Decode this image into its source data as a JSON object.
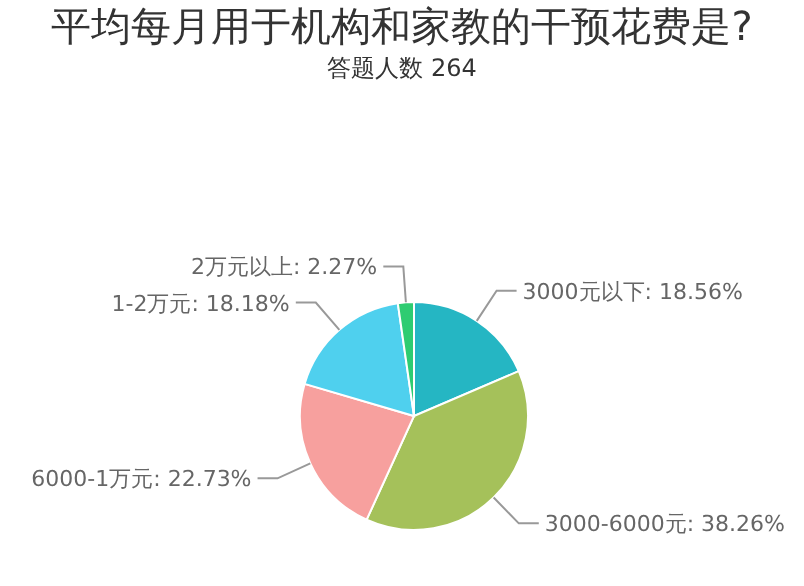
{
  "chart_data": {
    "type": "pie",
    "title": "平均每月用于机构和家教的干预花费是?",
    "subtitle": "答题人数 264",
    "categories": [
      "3000元以下",
      "3000-6000元",
      "6000-1万元",
      "1-2万元",
      "2万元以上"
    ],
    "values": [
      18.56,
      38.26,
      22.73,
      18.18,
      2.27
    ],
    "value_labels": [
      "18.56%",
      "38.26%",
      "22.73%",
      "18.18%",
      "2.27%"
    ],
    "colors": [
      "#25b6c3",
      "#a5c15a",
      "#f7a09e",
      "#4fd0ee",
      "#2ecc71"
    ]
  }
}
